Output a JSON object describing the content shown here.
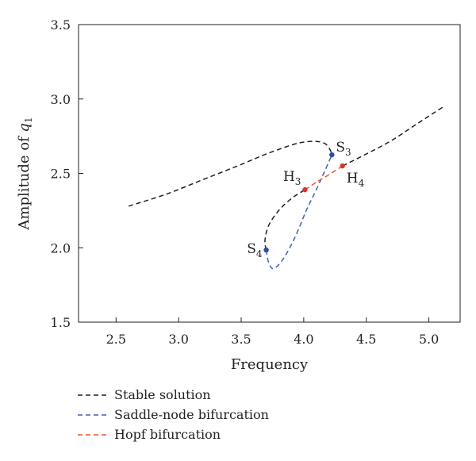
{
  "chart_data": {
    "type": "line",
    "xlabel": "Frequency",
    "ylabel_prefix": "Amplitude of ",
    "ylabel_var": "q",
    "ylabel_sub": "1",
    "xlim": [
      2.2,
      5.25
    ],
    "ylim": [
      1.5,
      3.5
    ],
    "x_ticks": [
      2.5,
      3.0,
      3.5,
      4.0,
      4.5,
      5.0
    ],
    "x_tick_labels": [
      "2.5",
      "3.0",
      "3.5",
      "4.0",
      "4.5",
      "5.0"
    ],
    "y_ticks": [
      1.5,
      2.0,
      2.5,
      3.0,
      3.5
    ],
    "y_tick_labels": [
      "1.5",
      "2.0",
      "2.5",
      "3.0",
      "3.5"
    ],
    "grid": false,
    "legend_position": "bottom-left, below plot",
    "series": [
      {
        "name": "Stable solution",
        "color": "#231f20",
        "style": "dashed",
        "segments": [
          [
            [
              2.6,
              2.28
            ],
            [
              2.9,
              2.36
            ],
            [
              3.2,
              2.46
            ],
            [
              3.5,
              2.56
            ],
            [
              3.7,
              2.63
            ],
            [
              3.9,
              2.69
            ],
            [
              4.0,
              2.71
            ],
            [
              4.1,
              2.715
            ],
            [
              4.17,
              2.7
            ],
            [
              4.21,
              2.66
            ],
            [
              4.225,
              2.625
            ]
          ],
          [
            [
              4.31,
              2.55
            ],
            [
              4.5,
              2.63
            ],
            [
              4.7,
              2.72
            ],
            [
              4.9,
              2.83
            ],
            [
              5.12,
              2.95
            ]
          ],
          [
            [
              3.7,
              1.985
            ],
            [
              3.69,
              2.05
            ],
            [
              3.72,
              2.15
            ],
            [
              3.8,
              2.25
            ],
            [
              3.9,
              2.33
            ],
            [
              4.01,
              2.39
            ]
          ]
        ]
      },
      {
        "name": "Saddle-node bifurcation",
        "color": "#3f5fb0",
        "style": "dashed",
        "segments": [
          [
            [
              3.7,
              1.985
            ],
            [
              3.72,
              1.9
            ],
            [
              3.76,
              1.86
            ],
            [
              3.84,
              1.93
            ],
            [
              3.93,
              2.07
            ],
            [
              4.02,
              2.25
            ],
            [
              4.1,
              2.39
            ],
            [
              4.17,
              2.52
            ],
            [
              4.225,
              2.625
            ]
          ]
        ]
      },
      {
        "name": "Hopf bifurcation",
        "color": "#e8542b",
        "style": "dashed",
        "segments": [
          [
            [
              4.01,
              2.39
            ],
            [
              4.1,
              2.44
            ],
            [
              4.2,
              2.49
            ],
            [
              4.31,
              2.55
            ]
          ]
        ]
      }
    ],
    "points": [
      {
        "name": "S",
        "sub": "3",
        "x": 4.225,
        "y": 2.625,
        "color": "#2c4f9e",
        "label_side": "right"
      },
      {
        "name": "S",
        "sub": "4",
        "x": 3.7,
        "y": 1.985,
        "color": "#2c4f9e",
        "label_side": "left"
      },
      {
        "name": "H",
        "sub": "3",
        "x": 4.01,
        "y": 2.39,
        "color": "#d8382c",
        "label_side": "left"
      },
      {
        "name": "H",
        "sub": "4",
        "x": 4.31,
        "y": 2.55,
        "color": "#d8382c",
        "label_side": "right"
      }
    ]
  }
}
